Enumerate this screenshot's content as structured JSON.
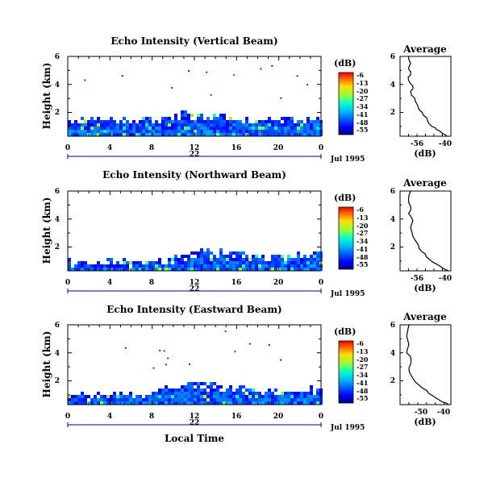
{
  "chart_data": [
    {
      "type": "heatmap",
      "title": "Echo Intensity (Vertical Beam)",
      "ylabel": "Height (km)",
      "xticks": [
        "0",
        "4",
        "8",
        "12",
        "16",
        "20",
        "0"
      ],
      "yticks": [
        "2",
        "4",
        "6"
      ],
      "xlim": [
        0,
        24
      ],
      "ylim": [
        0.3,
        6
      ],
      "day_label": "22",
      "date_label": "Jul 1995",
      "colorbar": {
        "unit": "(dB)",
        "ticks": [
          "-6",
          "-13",
          "-20",
          "-27",
          "-34",
          "-41",
          "-48",
          "-55"
        ],
        "range": [
          -58,
          -3
        ]
      },
      "echo_layer_top_km": [
        [
          0,
          1.5
        ],
        [
          2,
          1.5
        ],
        [
          4,
          1.6
        ],
        [
          6,
          1.5
        ],
        [
          8,
          1.4
        ],
        [
          10,
          1.8
        ],
        [
          11,
          1.9
        ],
        [
          12,
          1.8
        ],
        [
          14,
          1.6
        ],
        [
          16,
          1.5
        ],
        [
          18,
          1.4
        ],
        [
          20,
          1.6
        ],
        [
          22,
          1.5
        ],
        [
          24,
          1.7
        ]
      ],
      "profile": {
        "title": "Average",
        "xlabel": "(dB)",
        "xticks": [
          "-56",
          "-40"
        ],
        "yticks": [
          "2",
          "4",
          "6"
        ],
        "xlim": [
          -60,
          -36
        ],
        "ylim": [
          0.3,
          6
        ],
        "points": [
          [
            -38,
            0.3
          ],
          [
            -40,
            0.5
          ],
          [
            -43,
            0.8
          ],
          [
            -45,
            1.0
          ],
          [
            -47,
            1.4
          ],
          [
            -49,
            1.8
          ],
          [
            -51,
            2.2
          ],
          [
            -52,
            2.6
          ],
          [
            -53,
            3.0
          ],
          [
            -55,
            3.5
          ],
          [
            -54,
            3.9
          ],
          [
            -56,
            4.3
          ],
          [
            -55,
            4.7
          ],
          [
            -56,
            5.1
          ],
          [
            -55,
            5.5
          ],
          [
            -56,
            6.0
          ]
        ]
      }
    },
    {
      "type": "heatmap",
      "title": "Echo Intensity (Northward Beam)",
      "ylabel": "Height (km)",
      "xticks": [
        "0",
        "4",
        "8",
        "12",
        "16",
        "20",
        "0"
      ],
      "yticks": [
        "2",
        "4",
        "6"
      ],
      "xlim": [
        0,
        24
      ],
      "ylim": [
        0.3,
        6
      ],
      "day_label": "22",
      "date_label": "Jul 1995",
      "colorbar": {
        "unit": "(dB)",
        "ticks": [
          "-6",
          "-13",
          "-20",
          "-27",
          "-34",
          "-41",
          "-48",
          "-55"
        ],
        "range": [
          -58,
          -3
        ]
      },
      "echo_layer_top_km": [
        [
          0,
          0.9
        ],
        [
          2,
          0.8
        ],
        [
          4,
          1.0
        ],
        [
          6,
          0.9
        ],
        [
          8,
          1.0
        ],
        [
          10,
          1.2
        ],
        [
          12,
          1.6
        ],
        [
          14,
          1.7
        ],
        [
          16,
          1.5
        ],
        [
          18,
          1.3
        ],
        [
          20,
          1.4
        ],
        [
          22,
          1.3
        ],
        [
          24,
          1.6
        ]
      ],
      "profile": {
        "title": "Average",
        "xlabel": "(dB)",
        "xticks": [
          "-56",
          "-40"
        ],
        "yticks": [
          "2",
          "4",
          "6"
        ],
        "xlim": [
          -60,
          -36
        ],
        "ylim": [
          0.3,
          6
        ],
        "points": [
          [
            -37,
            0.3
          ],
          [
            -40,
            0.5
          ],
          [
            -43,
            0.8
          ],
          [
            -46,
            1.1
          ],
          [
            -48,
            1.5
          ],
          [
            -51,
            1.9
          ],
          [
            -52,
            2.3
          ],
          [
            -54,
            2.8
          ],
          [
            -55,
            3.4
          ],
          [
            -54,
            3.9
          ],
          [
            -56,
            4.4
          ],
          [
            -55,
            4.9
          ],
          [
            -56,
            5.4
          ],
          [
            -55,
            6.0
          ]
        ]
      }
    },
    {
      "type": "heatmap",
      "title": "Echo Intensity (Eastward Beam)",
      "ylabel": "Height (km)",
      "xticks": [
        "0",
        "4",
        "8",
        "12",
        "16",
        "20",
        "0"
      ],
      "yticks": [
        "2",
        "4",
        "6"
      ],
      "xlim": [
        0,
        24
      ],
      "ylim": [
        0.3,
        6
      ],
      "day_label": "22",
      "date_label": "Jul 1995",
      "xlabel": "Local Time",
      "colorbar": {
        "unit": "(dB)",
        "ticks": [
          "-6",
          "-13",
          "-20",
          "-27",
          "-34",
          "-41",
          "-48",
          "-55"
        ],
        "range": [
          -58,
          -3
        ]
      },
      "echo_layer_top_km": [
        [
          0,
          0.9
        ],
        [
          2,
          0.8
        ],
        [
          4,
          1.0
        ],
        [
          6,
          0.9
        ],
        [
          8,
          1.0
        ],
        [
          10,
          1.6
        ],
        [
          11,
          1.7
        ],
        [
          12,
          1.8
        ],
        [
          14,
          1.6
        ],
        [
          16,
          1.5
        ],
        [
          18,
          1.3
        ],
        [
          20,
          1.2
        ],
        [
          22,
          1.2
        ],
        [
          24,
          1.5
        ]
      ],
      "profile": {
        "title": "Average",
        "xlabel": "(dB)",
        "xticks": [
          "-50",
          "-40"
        ],
        "yticks": [
          "2",
          "4",
          "6"
        ],
        "xlim": [
          -60,
          -37
        ],
        "ylim": [
          0.3,
          6
        ],
        "points": [
          [
            -38,
            0.3
          ],
          [
            -41,
            0.5
          ],
          [
            -44,
            0.8
          ],
          [
            -47,
            1.1
          ],
          [
            -50,
            1.5
          ],
          [
            -53,
            1.9
          ],
          [
            -55,
            2.4
          ],
          [
            -56,
            2.9
          ],
          [
            -55,
            3.5
          ],
          [
            -57,
            4.0
          ],
          [
            -56,
            4.6
          ],
          [
            -57,
            5.2
          ],
          [
            -56,
            6.0
          ]
        ]
      }
    }
  ]
}
